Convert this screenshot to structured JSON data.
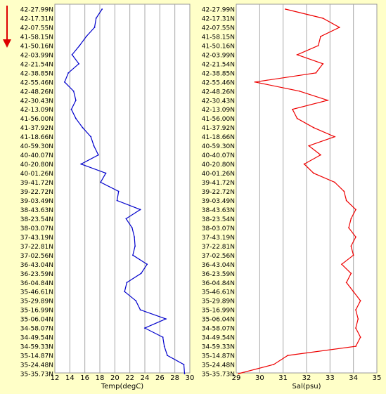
{
  "latitudes": [
    "42-27.99N",
    "42-17.31N",
    "42-07.55N",
    "41-58.15N",
    "41-50.16N",
    "42-03.99N",
    "42-21.54N",
    "42-38.85N",
    "42-55.46N",
    "42-48.26N",
    "42-30.43N",
    "42-13.09N",
    "41-56.00N",
    "41-37.92N",
    "41-18.66N",
    "40-59.30N",
    "40-40.07N",
    "40-20.80N",
    "40-01.26N",
    "39-41.72N",
    "39-22.72N",
    "39-03.49N",
    "38-43.63N",
    "38-23.54N",
    "38-03.07N",
    "37-43.19N",
    "37-22.81N",
    "37-02.56N",
    "36-43.04N",
    "36-23.59N",
    "36-04.84N",
    "35-46.61N",
    "35-29.89N",
    "35-16.99N",
    "35-06.04N",
    "34-58.07N",
    "34-49.54N",
    "34-59.33N",
    "35-14.87N",
    "35-24.48N",
    "35-35.73N"
  ],
  "chart_data": [
    {
      "type": "line",
      "xlabel": "Temp(degC)",
      "xlim": [
        12,
        30
      ],
      "xticks": [
        12,
        14,
        16,
        18,
        20,
        22,
        24,
        26,
        28,
        30
      ],
      "color": "#0000cc",
      "values": [
        18.3,
        17.5,
        17.3,
        16.2,
        15.3,
        14.3,
        15.2,
        13.8,
        13.3,
        14.5,
        14.8,
        14.2,
        14.8,
        15.7,
        16.8,
        17.2,
        17.8,
        15.5,
        18.8,
        18.1,
        20.5,
        20.3,
        23.4,
        21.5,
        22.3,
        22.6,
        22.7,
        22.4,
        24.3,
        23.5,
        21.6,
        21.3,
        22.8,
        23.4,
        26.8,
        24.0,
        26.4,
        26.6,
        27.0,
        29.2,
        29.3
      ]
    },
    {
      "type": "line",
      "xlabel": "Sal(psu)",
      "xlim": [
        29,
        35
      ],
      "xticks": [
        29,
        30,
        31,
        32,
        33,
        34,
        35
      ],
      "color": "#ee0000",
      "values": [
        31.1,
        32.7,
        33.4,
        32.6,
        32.5,
        31.6,
        32.7,
        32.4,
        29.8,
        31.7,
        32.9,
        31.4,
        31.6,
        32.3,
        33.2,
        32.1,
        32.6,
        31.9,
        32.3,
        33.2,
        33.6,
        33.7,
        34.1,
        33.9,
        33.8,
        34.1,
        33.9,
        34.0,
        33.5,
        33.9,
        33.7,
        34.0,
        34.3,
        34.1,
        34.2,
        34.1,
        34.3,
        34.1,
        31.2,
        30.6,
        29.1
      ]
    }
  ]
}
